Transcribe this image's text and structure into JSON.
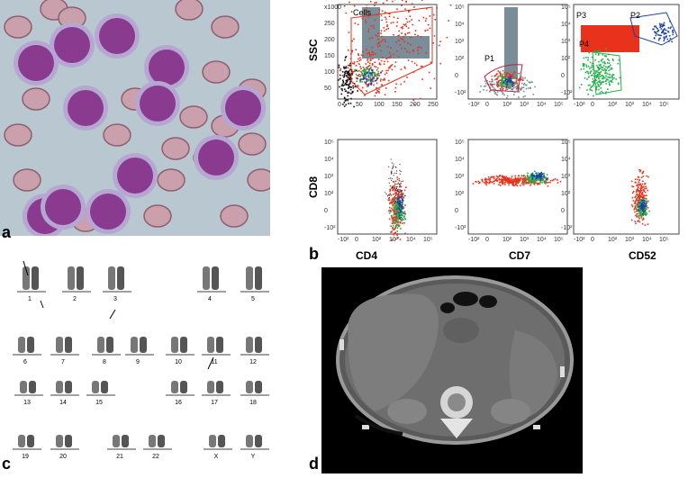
{
  "panels": {
    "a": {
      "label": "a"
    },
    "b": {
      "label": "b",
      "ssc_label": "SSC",
      "cd8_label": "CD8",
      "x_labels": [
        "CD4",
        "CD7",
        "CD52"
      ],
      "gates": {
        "cells": "Cells",
        "p1": "P1",
        "p2": "P2",
        "p3": "P3",
        "p4": "P4"
      },
      "top_ticks_linear": [
        "0",
        "50",
        "100",
        "150",
        "200",
        "250"
      ],
      "top_ticks_y": [
        "x1000",
        "250",
        "200",
        "150",
        "100",
        "50"
      ],
      "scale_note": "x1000",
      "log_ticks": [
        "-10²",
        "0",
        "10²",
        "10³",
        "10⁴",
        "10⁵"
      ],
      "log_ticks_y": [
        "10⁵",
        "10⁴",
        "10³",
        "10²",
        "0",
        "-10²"
      ]
    },
    "c": {
      "label": "c",
      "chromosomes": [
        "1",
        "2",
        "3",
        "4",
        "5",
        "6",
        "7",
        "8",
        "9",
        "10",
        "11",
        "12",
        "13",
        "14",
        "15",
        "16",
        "17",
        "18",
        "19",
        "20",
        "21",
        "22",
        "X",
        "Y"
      ]
    },
    "d": {
      "label": "d"
    }
  },
  "colors": {
    "cell_purple": "#8a3a8f",
    "rbc": "#c9a0ac",
    "flow_red": "#e8321c",
    "flow_green": "#22b04a",
    "flow_blue": "#1d3fa8",
    "flow_gray": "#7a8e9a"
  }
}
